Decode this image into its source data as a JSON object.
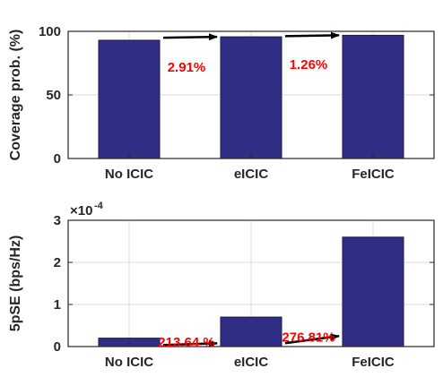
{
  "colors": {
    "bar": "#302f85",
    "annotation": "#ff0000",
    "arrow": "#000000",
    "grid": "#dcdcdc",
    "axis": "#262626"
  },
  "chart_data": [
    {
      "type": "bar",
      "categories": [
        "No ICIC",
        "eICIC",
        "FeICIC"
      ],
      "values": [
        93,
        95.7,
        96.9
      ],
      "ylabel": "Coverage prob. (%)",
      "xlabel": "",
      "ylim": [
        0,
        100
      ],
      "yticks": [
        0,
        50,
        100
      ],
      "ytick_labels": [
        "0",
        "50",
        "100"
      ],
      "exponent_label": "",
      "grid": true,
      "annotations": [
        {
          "text": "2.91%",
          "from": [
            "No ICIC",
            95
          ],
          "to": [
            "eICIC",
            95.7
          ],
          "label_at": [
            "No ICIC",
            72
          ]
        },
        {
          "text": "1.26%",
          "from": [
            "eICIC",
            96.2
          ],
          "to": [
            "FeICIC",
            96.9
          ],
          "label_at": [
            "eICIC",
            74
          ]
        }
      ]
    },
    {
      "type": "bar",
      "categories": [
        "No ICIC",
        "eICIC",
        "FeICIC"
      ],
      "values": [
        2e-05,
        7e-05,
        0.00026
      ],
      "ylabel": "5pSE (bps/Hz)",
      "xlabel": "",
      "ylim": [
        0,
        0.0003
      ],
      "yticks": [
        0,
        0.0001,
        0.0002,
        0.0003
      ],
      "ytick_labels": [
        "0",
        "1",
        "2",
        "3"
      ],
      "exponent_label": "×10",
      "exponent_power": "-4",
      "grid": true,
      "annotations": [
        {
          "text": "213.64 %",
          "from": [
            "No ICIC",
            3.7e-06
          ],
          "to": [
            "eICIC",
            7.8e-06
          ],
          "label_at": [
            "No ICIC",
            1.03e-05
          ]
        },
        {
          "text": "276.81%",
          "from": [
            "eICIC",
            8e-06
          ],
          "to": [
            "FeICIC",
            2.5e-05
          ],
          "label_at": [
            "eICIC",
            2.2e-05
          ]
        }
      ]
    }
  ]
}
